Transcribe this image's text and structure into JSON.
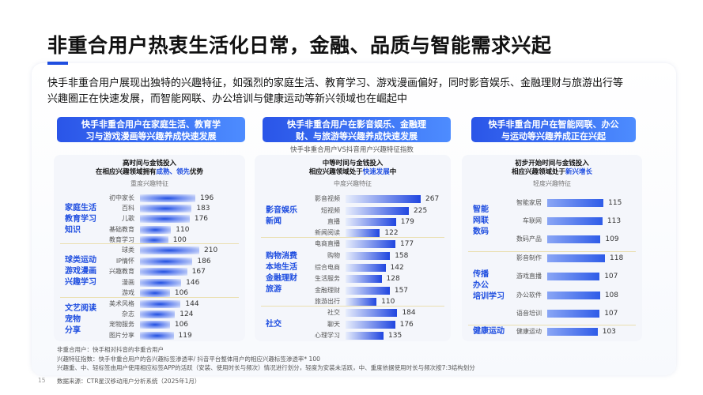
{
  "title": "非重合用户热衷生活化日常，金融、品质与智能需求兴起",
  "description": "快手非重合用户展现出独特的兴趣特征，如强烈的家庭生活、教育学习、游戏漫画偏好，同时影音娱乐、金融理财与旅游出行等兴趣圈正在快速发展，而智能网联、办公培训与健康运动等新兴领域也在崛起中",
  "subtitle": "快手非重合用户VS抖音用户兴趣特征指数",
  "colors": {
    "accent": "#1f4ee0",
    "separator": "#eadfb0"
  },
  "columns": [
    {
      "header": [
        "快手非重合用户在家庭生活、教育学",
        "习与游戏漫画等兴趣养成快速发展"
      ],
      "title_line1": "高时间与金钱投入",
      "title_line2_pre": "在相应兴趣领域拥有",
      "title_line2_hl": "成熟、领先",
      "title_line2_post": "优势",
      "level": "重度兴趣特征"
    },
    {
      "header": [
        "快手非重合用户在影音娱乐、金融理",
        "财、与旅游等兴趣养成快速发展"
      ],
      "title_line1": "中等时间与金钱投入",
      "title_line2_pre": "相应兴趣领域处于",
      "title_line2_hl": "快速发展",
      "title_line2_post": "中",
      "level": "中度兴趣特征"
    },
    {
      "header": [
        "快手非重合用户在智能网联、办公",
        "与运动等兴趣养成正在兴起"
      ],
      "title_line1": "初步开始时间与金钱投入",
      "title_line2_pre": "相应兴趣领域处于",
      "title_line2_hl": "新兴增长",
      "title_line2_post": "",
      "level": "轻度兴趣特征"
    }
  ],
  "chart_data": [
    {
      "type": "bar",
      "orientation": "horizontal",
      "groups": [
        {
          "name": "家庭生活\n教育学习\n知识",
          "categories": [
            "初中家长",
            "百科",
            "儿歌",
            "基础教育",
            "教育学习"
          ],
          "values": [
            196,
            183,
            176,
            110,
            100
          ]
        },
        {
          "name": "球类运动\n游戏漫画\n兴趣学习",
          "categories": [
            "球类",
            "IP情怀",
            "兴趣教育",
            "漫画",
            "游戏"
          ],
          "values": [
            210,
            186,
            167,
            146,
            106
          ]
        },
        {
          "name": "文艺阅读\n宠物\n分享",
          "categories": [
            "美术风格",
            "杂志",
            "宠物服务",
            "图片分享"
          ],
          "values": [
            144,
            124,
            106,
            119
          ]
        }
      ]
    },
    {
      "type": "bar",
      "orientation": "horizontal",
      "groups": [
        {
          "name": "影音娱乐\n新闻",
          "categories": [
            "影音视频",
            "短视频",
            "直播",
            "新闻阅读"
          ],
          "values": [
            267,
            225,
            179,
            122
          ]
        },
        {
          "name": "购物消费\n本地生活\n金融理财\n旅游",
          "categories": [
            "电商直播",
            "购物",
            "综合电商",
            "生活服务",
            "金融理财",
            "旅游出行"
          ],
          "values": [
            177,
            158,
            142,
            128,
            157,
            110
          ]
        },
        {
          "name": "社交",
          "categories": [
            "社交",
            "聊天",
            "心理学习"
          ],
          "values": [
            184,
            176,
            135
          ]
        }
      ]
    },
    {
      "type": "bar",
      "orientation": "horizontal",
      "groups": [
        {
          "name": "智能\n网联\n数码",
          "categories": [
            "智能家居",
            "车联网",
            "数码产品"
          ],
          "values": [
            115,
            113,
            109
          ]
        },
        {
          "name": "传播\n办公\n培训学习",
          "categories": [
            "影音制作",
            "游戏直播",
            "办公软件",
            "语音培训"
          ],
          "values": [
            118,
            107,
            108,
            107
          ]
        },
        {
          "name": "健康运动",
          "categories": [
            "健康运动"
          ],
          "values": [
            103
          ]
        }
      ]
    }
  ],
  "notes": [
    "非重合用户：快手相对抖音的非重合用户",
    "兴趣特征指数：快手非重合用户的各兴趣标签渗透率/ 抖音平台整体用户的相应兴趣标签渗透率* 100",
    "兴趣重、中、轻标签由用户使用相应标签APP的活跃（安装、使用时长与频次）情况进行划分，轻度为安装未活跃，中、重度依据使用时长与频次按7:3结构划分"
  ],
  "page_number": "15",
  "source": "数据来源：CTR星汉移动用户分析系统（2025年1月）"
}
